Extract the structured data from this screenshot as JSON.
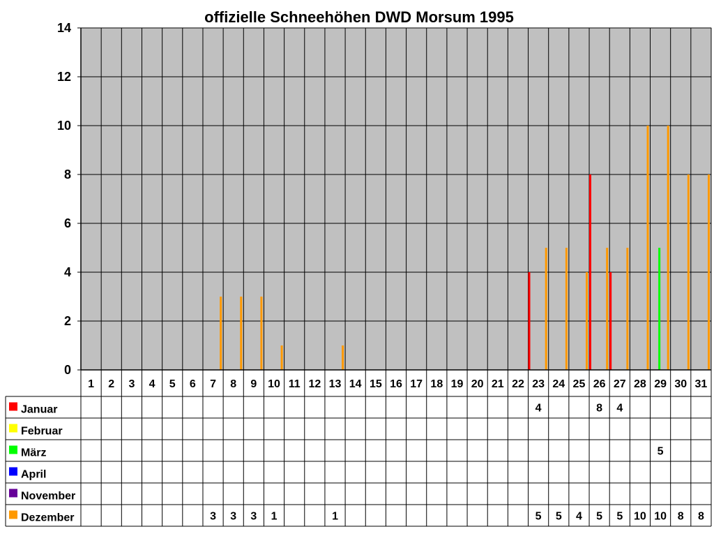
{
  "chart_data": {
    "type": "bar",
    "title": "offizielle Schneehöhen DWD Morsum 1995",
    "xlabel": "",
    "ylabel": "",
    "ylim": [
      0,
      14
    ],
    "yticks": [
      0,
      2,
      4,
      6,
      8,
      10,
      12,
      14
    ],
    "grid": true,
    "plot_background": "#c0c0c0",
    "categories": [
      "1",
      "2",
      "3",
      "4",
      "5",
      "6",
      "7",
      "8",
      "9",
      "10",
      "11",
      "12",
      "13",
      "14",
      "15",
      "16",
      "17",
      "18",
      "19",
      "20",
      "21",
      "22",
      "23",
      "24",
      "25",
      "26",
      "27",
      "28",
      "29",
      "30",
      "31"
    ],
    "legend_position": "data-table-left",
    "series": [
      {
        "name": "Januar",
        "color": "#ff0000",
        "values": [
          null,
          null,
          null,
          null,
          null,
          null,
          null,
          null,
          null,
          null,
          null,
          null,
          null,
          null,
          null,
          null,
          null,
          null,
          null,
          null,
          null,
          null,
          4,
          null,
          null,
          8,
          4,
          null,
          null,
          null,
          null
        ]
      },
      {
        "name": "Februar",
        "color": "#ffff00",
        "values": [
          null,
          null,
          null,
          null,
          null,
          null,
          null,
          null,
          null,
          null,
          null,
          null,
          null,
          null,
          null,
          null,
          null,
          null,
          null,
          null,
          null,
          null,
          null,
          null,
          null,
          null,
          null,
          null,
          null,
          null,
          null
        ]
      },
      {
        "name": "März",
        "color": "#00ff00",
        "values": [
          null,
          null,
          null,
          null,
          null,
          null,
          null,
          null,
          null,
          null,
          null,
          null,
          null,
          null,
          null,
          null,
          null,
          null,
          null,
          null,
          null,
          null,
          null,
          null,
          null,
          null,
          null,
          null,
          5,
          null,
          null
        ]
      },
      {
        "name": "April",
        "color": "#0000ff",
        "values": [
          null,
          null,
          null,
          null,
          null,
          null,
          null,
          null,
          null,
          null,
          null,
          null,
          null,
          null,
          null,
          null,
          null,
          null,
          null,
          null,
          null,
          null,
          null,
          null,
          null,
          null,
          null,
          null,
          null,
          null,
          null
        ]
      },
      {
        "name": "November",
        "color": "#660099",
        "values": [
          null,
          null,
          null,
          null,
          null,
          null,
          null,
          null,
          null,
          null,
          null,
          null,
          null,
          null,
          null,
          null,
          null,
          null,
          null,
          null,
          null,
          null,
          null,
          null,
          null,
          null,
          null,
          null,
          null,
          null,
          null
        ]
      },
      {
        "name": "Dezember",
        "color": "#ff9900",
        "values": [
          null,
          null,
          null,
          null,
          null,
          null,
          3,
          3,
          3,
          1,
          null,
          null,
          1,
          null,
          null,
          null,
          null,
          null,
          null,
          null,
          null,
          null,
          5,
          5,
          4,
          5,
          5,
          10,
          10,
          8,
          8
        ]
      }
    ]
  }
}
